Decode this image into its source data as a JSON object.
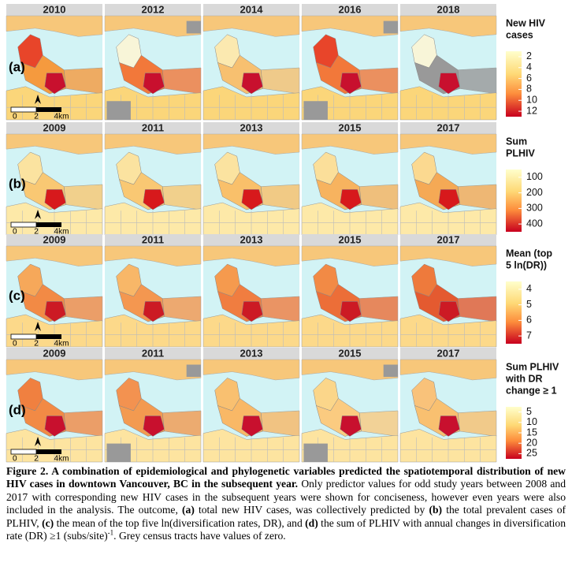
{
  "rows": [
    {
      "label": "(a)",
      "years": [
        "2010",
        "2012",
        "2014",
        "2016",
        "2018"
      ],
      "legend_title": [
        "New HIV",
        "cases"
      ],
      "legend_ticks": [
        2,
        4,
        6,
        8,
        10,
        12
      ]
    },
    {
      "label": "(b)",
      "years": [
        "2009",
        "2011",
        "2013",
        "2015",
        "2017"
      ],
      "legend_title": [
        "Sum",
        "PLHIV"
      ],
      "legend_ticks": [
        100,
        200,
        300,
        400
      ]
    },
    {
      "label": "(c)",
      "years": [
        "2009",
        "2011",
        "2013",
        "2015",
        "2017"
      ],
      "legend_title": [
        "Mean (top",
        "5 ln(DR))"
      ],
      "legend_ticks": [
        4,
        5,
        6,
        7
      ]
    },
    {
      "label": "(d)",
      "years": [
        "2009",
        "2011",
        "2013",
        "2015",
        "2017"
      ],
      "legend_title": [
        "Sum PLHIV",
        "with DR",
        "change ≥ 1"
      ],
      "legend_ticks": [
        5,
        10,
        15,
        20,
        25
      ]
    }
  ],
  "scale_bar": [
    "0",
    "2",
    "4km"
  ],
  "caption": [
    {
      "text": "Figure 2. A combination of epidemiological and phylogenetic variables predicted the spatiotemporal distribution of new HIV cases in downtown Vancouver, BC in the subsequent year.",
      "bold": true
    },
    {
      "text": " Only predictor values for odd study years between 2008 and 2017 with corresponding new HIV cases in the subsequent years were shown for conciseness, however even years were also included in the analysis. The outcome, ",
      "bold": false
    },
    {
      "text": "(a)",
      "bold": true
    },
    {
      "text": " total new HIV cases, was collectively predicted by ",
      "bold": false
    },
    {
      "text": "(b)",
      "bold": true
    },
    {
      "text": " the total prevalent cases of PLHIV, ",
      "bold": false
    },
    {
      "text": "(c)",
      "bold": true
    },
    {
      "text": " the mean of the top five ln(diversification rates, DR), and ",
      "bold": false
    },
    {
      "text": "(d)",
      "bold": true
    },
    {
      "text": " the sum of PLHIV with annual changes in diversification rate (DR) ≥1 (subs/site)",
      "bold": false
    },
    {
      "text": "-1",
      "bold": false,
      "sup": true
    },
    {
      "text": ". Grey census tracts have values of zero.",
      "bold": false
    }
  ]
}
